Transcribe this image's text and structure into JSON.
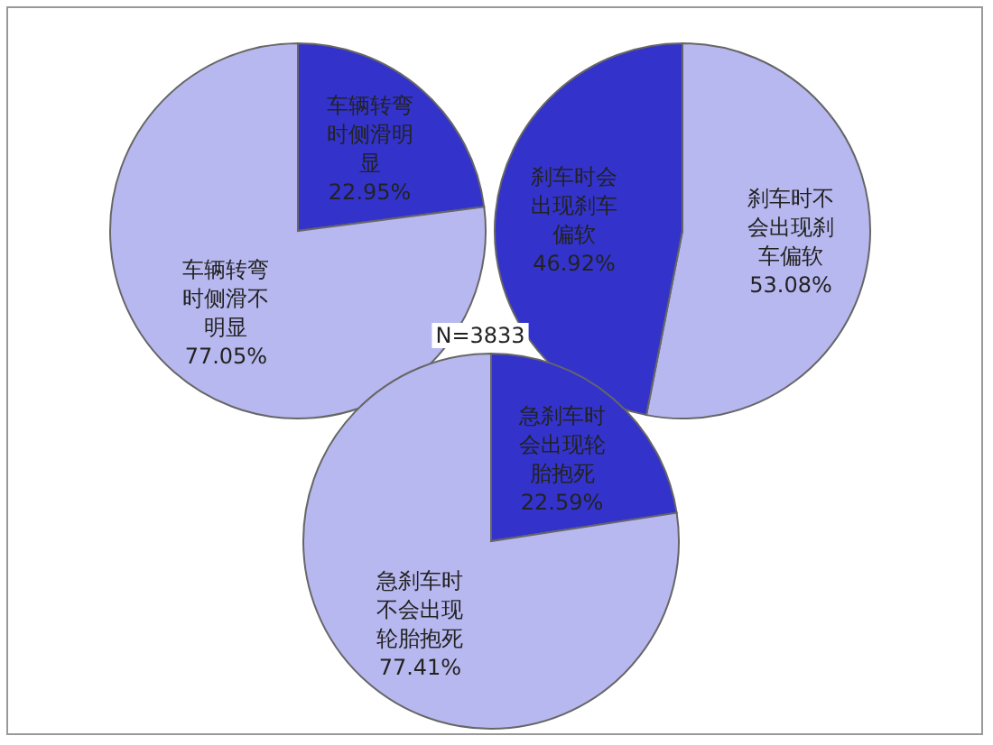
{
  "chart_data": [
    {
      "type": "pie",
      "categories": [
        "车辆转弯时侧滑明显",
        "车辆转弯时侧滑不明显"
      ],
      "values": [
        22.95,
        77.05
      ],
      "value_labels": [
        "22.95%",
        "77.05%"
      ],
      "colors": [
        "#3333cc",
        "#b8b8f0"
      ]
    },
    {
      "type": "pie",
      "categories": [
        "刹车时不会出现刹车偏软",
        "刹车时会出现刹车偏软"
      ],
      "values": [
        53.08,
        46.92
      ],
      "value_labels": [
        "53.08%",
        "46.92%"
      ],
      "colors": [
        "#b8b8f0",
        "#3333cc"
      ]
    },
    {
      "type": "pie",
      "categories": [
        "急刹车时会出现轮胎抱死",
        "急刹车时不会出现轮胎抱死"
      ],
      "values": [
        22.59,
        77.41
      ],
      "value_labels": [
        "22.59%",
        "77.41%"
      ],
      "colors": [
        "#3333cc",
        "#b8b8f0"
      ],
      "annotations": [
        "N=3833"
      ]
    }
  ]
}
